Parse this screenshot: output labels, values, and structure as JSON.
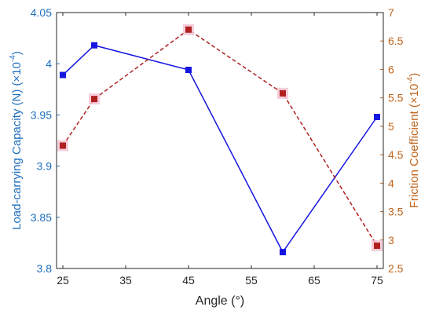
{
  "chart_data": {
    "type": "line",
    "xlabel": "Angle (°)",
    "xlim": [
      24,
      76
    ],
    "x_ticks": [
      25,
      35,
      45,
      55,
      65,
      75
    ],
    "x": [
      25,
      30,
      45,
      60,
      75
    ],
    "y_left": {
      "label": "Load-carrying Capacity (N) (×10",
      "label_exponent": "-4",
      "label_suffix": ")",
      "ylim": [
        3.8,
        4.05
      ],
      "ticks": [
        "3.8",
        "3.85",
        "3.9",
        "3.95",
        "4",
        "4.05"
      ],
      "color": "#1515e0"
    },
    "y_right": {
      "label": "Friction Coefficient (×10",
      "label_exponent": "-4",
      "label_suffix": ")",
      "ylim": [
        2.5,
        7
      ],
      "ticks": [
        "2.5",
        "3",
        "3.5",
        "4",
        "4.5",
        "5",
        "5.5",
        "6",
        "6.5",
        "7"
      ],
      "color": "#b02020"
    },
    "series": [
      {
        "axis": "left",
        "style": "solid",
        "color": "#1515e0",
        "values": [
          3.989,
          4.018,
          3.994,
          3.816,
          3.948
        ]
      },
      {
        "axis": "right",
        "style": "dashed",
        "color": "#b02020",
        "values": [
          4.66,
          5.48,
          6.7,
          5.58,
          2.9
        ]
      }
    ]
  }
}
